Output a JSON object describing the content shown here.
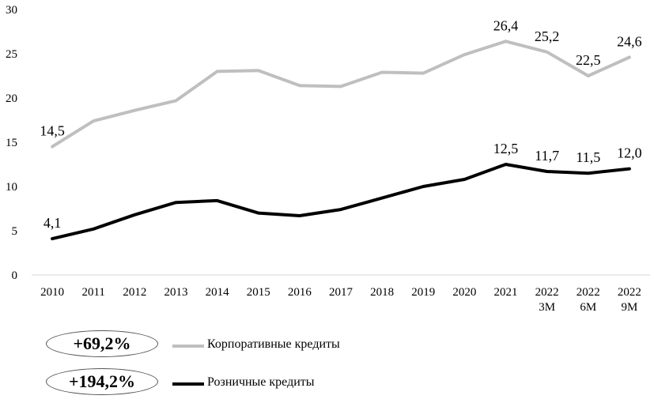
{
  "chart_data": {
    "type": "line",
    "title": "",
    "xlabel": "",
    "ylabel": "",
    "ylim": [
      0,
      30
    ],
    "yticks": [
      "0",
      "5",
      "10",
      "15",
      "20",
      "25",
      "30"
    ],
    "categories": [
      [
        "2010"
      ],
      [
        "2011"
      ],
      [
        "2012"
      ],
      [
        "2013"
      ],
      [
        "2014"
      ],
      [
        "2015"
      ],
      [
        "2016"
      ],
      [
        "2017"
      ],
      [
        "2018"
      ],
      [
        "2019"
      ],
      [
        "2020"
      ],
      [
        "2021"
      ],
      [
        "2022",
        "3M"
      ],
      [
        "2022",
        "6M"
      ],
      [
        "2022",
        "9M"
      ]
    ],
    "grid": false,
    "series": [
      {
        "name": "Корпоративные кредиты",
        "color": "#bfbfbf",
        "values": [
          14.5,
          17.4,
          18.6,
          19.7,
          23.0,
          23.1,
          21.4,
          21.3,
          22.9,
          22.8,
          24.9,
          26.4,
          25.2,
          22.5,
          24.6
        ],
        "labels": [
          "14,5",
          null,
          null,
          null,
          null,
          null,
          null,
          null,
          null,
          null,
          null,
          "26,4",
          "25,2",
          "22,5",
          "24,6"
        ]
      },
      {
        "name": "Розничные кредиты",
        "color": "#000000",
        "values": [
          4.1,
          5.2,
          6.8,
          8.2,
          8.4,
          7.0,
          6.7,
          7.4,
          8.7,
          10.0,
          10.8,
          12.5,
          11.7,
          11.5,
          12.0
        ],
        "labels": [
          "4,1",
          null,
          null,
          null,
          null,
          null,
          null,
          null,
          null,
          null,
          null,
          "12,5",
          "11,7",
          "11,5",
          "12,0"
        ]
      }
    ]
  },
  "legend": [
    {
      "growth": "+69,2%",
      "label": "Корпоративные кредиты"
    },
    {
      "growth": "+194,2%",
      "label": "Розничные кредиты"
    }
  ]
}
